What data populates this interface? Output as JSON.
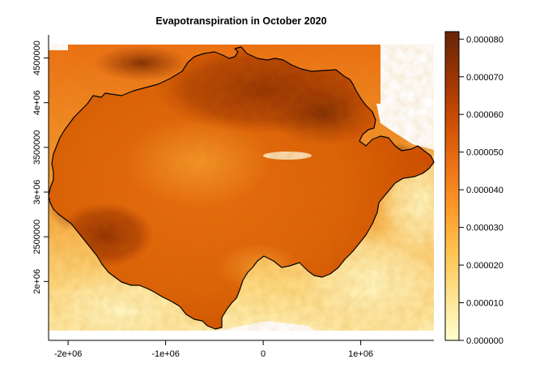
{
  "title": "Evapotranspiration in October 2020",
  "colors": {
    "ramp": [
      "#ffffcc",
      "#fee391",
      "#fec44f",
      "#fe9929",
      "#ec7014",
      "#cc4c02",
      "#993404",
      "#662506"
    ],
    "outline": "#000000",
    "no_data": "#ffffff"
  },
  "chart_data": {
    "type": "heatmap",
    "title": "Evapotranspiration in October 2020",
    "xlabel": "",
    "ylabel": "",
    "x_range": [
      -2200000,
      1750000
    ],
    "y_range": [
      1450000,
      4650000
    ],
    "x_ticks": [
      {
        "value": -2000000,
        "label": "-2e+06"
      },
      {
        "value": -1000000,
        "label": "-1e+06"
      },
      {
        "value": 0,
        "label": "0"
      },
      {
        "value": 1000000,
        "label": "1e+06"
      }
    ],
    "y_ticks": [
      {
        "value": 2000000,
        "label": "2e+06"
      },
      {
        "value": 2500000,
        "label": "2500000"
      },
      {
        "value": 3000000,
        "label": "3e+06"
      },
      {
        "value": 3500000,
        "label": "3500000"
      },
      {
        "value": 4000000,
        "label": "4e+06"
      },
      {
        "value": 4500000,
        "label": "4500000"
      }
    ],
    "legend": {
      "min": 0,
      "max": 8.2e-05,
      "placement": "right",
      "ticks": [
        {
          "value": 0,
          "label": "0.000000"
        },
        {
          "value": 1e-05,
          "label": "0.000010"
        },
        {
          "value": 2e-05,
          "label": "0.000020"
        },
        {
          "value": 3e-05,
          "label": "0.000030"
        },
        {
          "value": 4e-05,
          "label": "0.000040"
        },
        {
          "value": 5e-05,
          "label": "0.000050"
        },
        {
          "value": 6e-05,
          "label": "0.000060"
        },
        {
          "value": 7e-05,
          "label": "0.000070"
        },
        {
          "value": 8e-05,
          "label": "0.000080"
        }
      ]
    },
    "grid": false
  }
}
